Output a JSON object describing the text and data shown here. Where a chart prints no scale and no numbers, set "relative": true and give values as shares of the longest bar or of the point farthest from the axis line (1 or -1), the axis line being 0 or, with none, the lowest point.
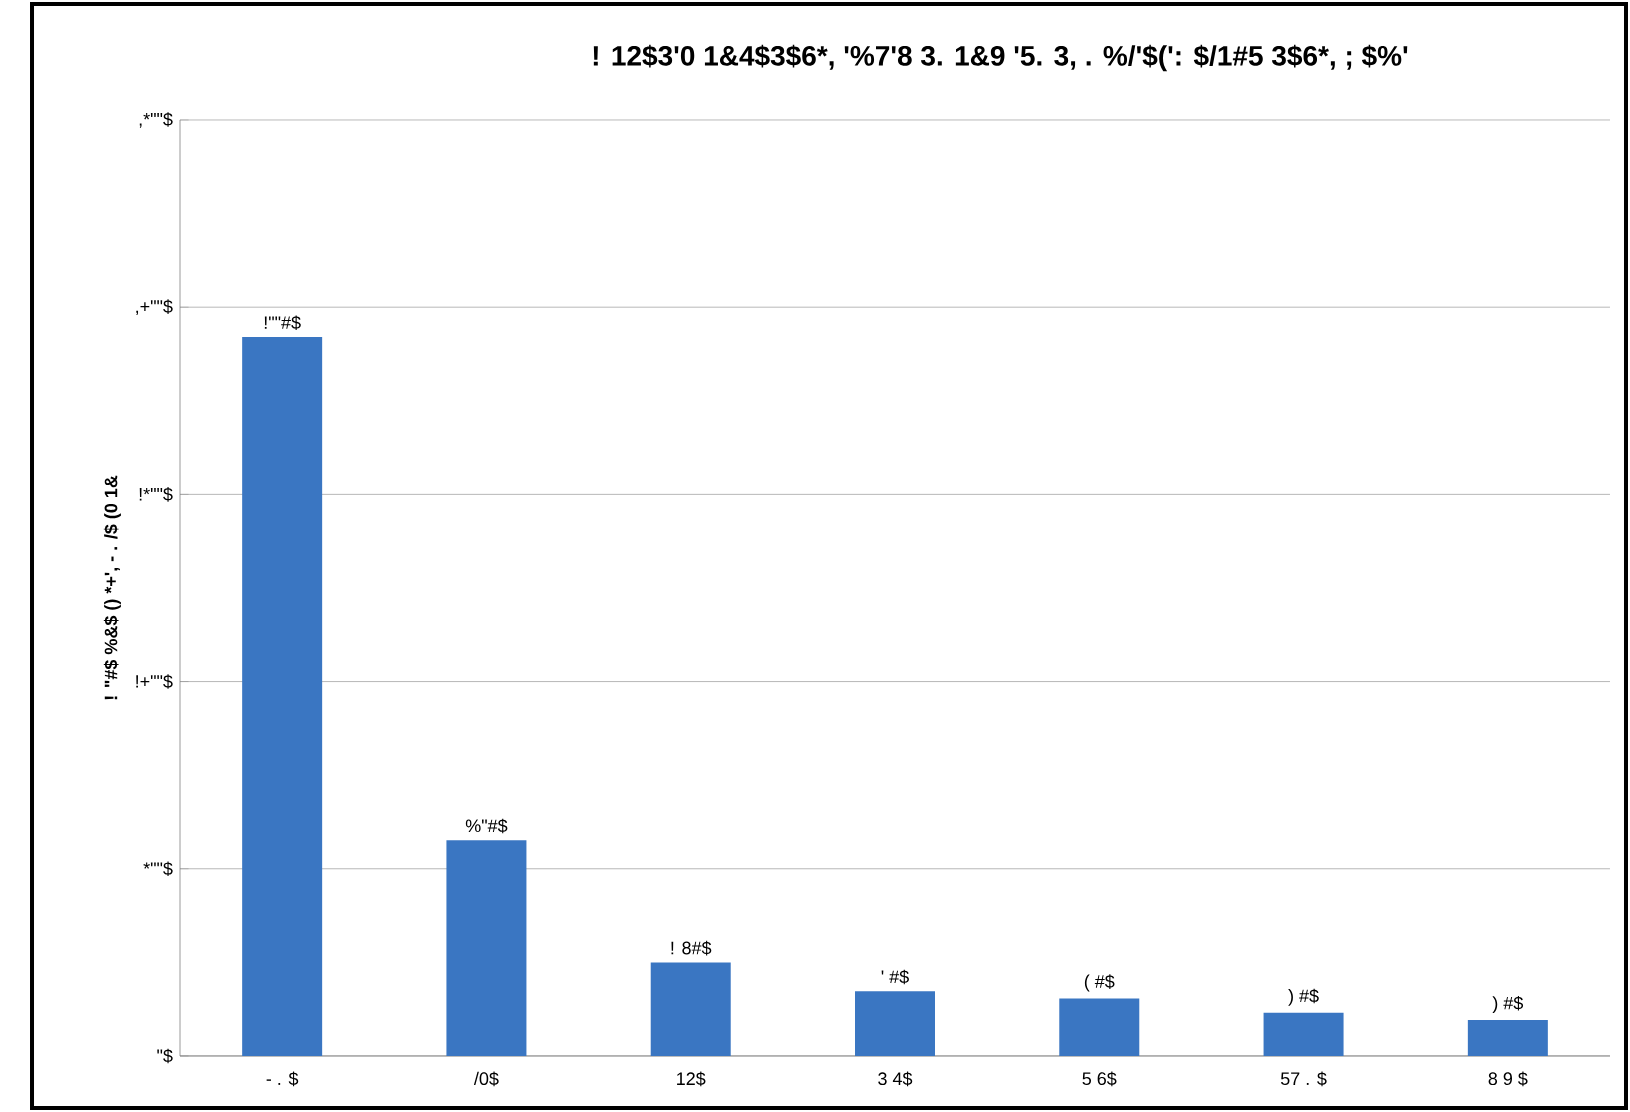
{
  "chart_data": {
    "type": "bar",
    "title": "! 12$3'0 1&4$3$6*, '%7'8 3. 1&9 '5. 3, . %/'$(': $/1#5 3$6*, ; $%'",
    "ylabel": "! \"#$ %&$ () *+', - . /$ (0 1&",
    "categories": [
      "- . $",
      "/0$",
      "12$",
      "3 4$",
      "5 6$",
      "57 . $",
      "8 9 $"
    ],
    "values": [
      1,
      0.3,
      0.13,
      0.09,
      0.08,
      0.06,
      0.05
    ],
    "relative": true,
    "color": "#3a76c2",
    "annotations": [
      "\"$",
      "*\"\"$",
      "!+\"\"$",
      "!*\"\"$",
      ",+\"\"$",
      ",*\"\"$",
      "!\"\"#$",
      "%\"#$",
      "! 8#$",
      "' #$",
      "( #$",
      ") #$",
      ") #$"
    ],
    "grid": "y"
  }
}
